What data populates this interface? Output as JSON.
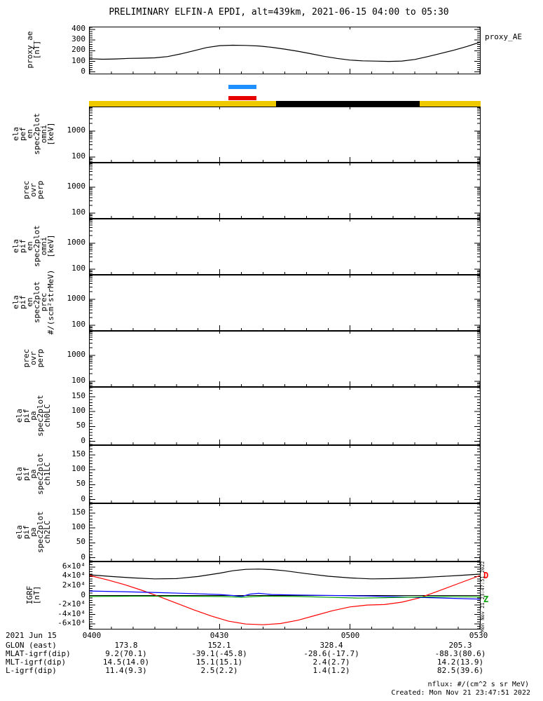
{
  "title": "PRELIMINARY ELFIN-A EPDI, alt=439km, 2021-06-15 04:00 to 05:30",
  "xaxis": {
    "range_minutes": [
      0,
      90
    ],
    "major_minutes": [
      0,
      30,
      60,
      90
    ],
    "minor_step_minutes": 5,
    "tick_labels": [
      "0400",
      "0430",
      "0500",
      "0530"
    ]
  },
  "legend_bars": {
    "items": [
      {
        "name": "legend-bar-blue",
        "color": "#1e90ff"
      },
      {
        "name": "legend-bar-red",
        "color": "#e60000"
      }
    ]
  },
  "availability_bar": {
    "color": "#eec900",
    "segments": [
      {
        "color": "#000000",
        "start_minute": 43,
        "end_minute": 76
      }
    ]
  },
  "chart_data": [
    {
      "type": "line",
      "id": "proxy_ae",
      "right_label": "proxy_AE",
      "ylabel_lines": [
        "proxy_ae",
        "[nT]"
      ],
      "scale": "linear",
      "ylim": [
        -15,
        420
      ],
      "minor_step": 20,
      "yticks": [
        0,
        100,
        200,
        300,
        400
      ],
      "ytick_labels": [
        "0",
        "100",
        "200",
        "300",
        "400"
      ],
      "series": [
        {
          "name": "proxy_AE",
          "color": "#000000",
          "x": [
            0,
            3,
            6,
            9,
            12,
            15,
            18,
            21,
            24,
            27,
            30,
            33,
            36,
            39,
            42,
            45,
            48,
            51,
            54,
            57,
            60,
            63,
            66,
            69,
            72,
            75,
            78,
            81,
            84,
            87,
            90
          ],
          "y": [
            125,
            120,
            123,
            128,
            130,
            133,
            145,
            170,
            200,
            230,
            248,
            252,
            250,
            245,
            232,
            215,
            195,
            172,
            148,
            128,
            112,
            105,
            102,
            100,
            103,
            118,
            145,
            175,
            205,
            240,
            280
          ]
        }
      ]
    },
    {
      "type": "spectrogram",
      "id": "ela_pef_en_spec2plot_omni",
      "ylabel_lines": [
        "ela",
        "pef",
        "en",
        "spec2plot",
        "omni",
        "[keV]"
      ],
      "scale": "log",
      "ylim": [
        65,
        8300
      ],
      "yticks": [
        100,
        1000
      ],
      "ytick_labels": [
        "100",
        "1000"
      ],
      "series": []
    },
    {
      "type": "spectrogram",
      "id": "prec_ovr_perp_a",
      "ylabel_lines": [
        "prec",
        "ovr",
        "perp"
      ],
      "scale": "log",
      "ylim": [
        65,
        8300
      ],
      "yticks": [
        100,
        1000
      ],
      "ytick_labels": [
        "100",
        "1000"
      ],
      "series": []
    },
    {
      "type": "spectrogram",
      "id": "ela_pif_en_spec2plot_omni",
      "ylabel_lines": [
        "ela",
        "pif",
        "en",
        "spec2plot",
        "omni",
        "[keV]"
      ],
      "scale": "log",
      "ylim": [
        65,
        8300
      ],
      "yticks": [
        100,
        1000
      ],
      "ytick_labels": [
        "100",
        "1000"
      ],
      "series": []
    },
    {
      "type": "spectrogram",
      "id": "ela_pif_en_spec2plot_prec",
      "ylabel_lines": [
        "ela",
        "pif",
        "en",
        "spec2plot",
        "prec",
        "#/(scm²strMeV)"
      ],
      "scale": "log",
      "ylim": [
        65,
        8300
      ],
      "yticks": [
        100,
        1000
      ],
      "ytick_labels": [
        "100",
        "1000"
      ],
      "series": []
    },
    {
      "type": "spectrogram",
      "id": "prec_ovr_perp_b",
      "ylabel_lines": [
        "prec",
        "ovr",
        "perp"
      ],
      "scale": "log",
      "ylim": [
        65,
        8300
      ],
      "yticks": [
        100,
        1000
      ],
      "ytick_labels": [
        "100",
        "1000"
      ],
      "series": []
    },
    {
      "type": "line",
      "id": "ela_pif_pa_spec2plot_ch0LC",
      "ylabel_lines": [
        "ela",
        "pif",
        "pa",
        "spec2plot",
        "ch0LC"
      ],
      "scale": "linear",
      "ylim": [
        -10,
        180
      ],
      "minor_step": 10,
      "yticks": [
        0,
        50,
        100,
        150
      ],
      "ytick_labels": [
        "0",
        "50",
        "100",
        "150"
      ],
      "series": []
    },
    {
      "type": "line",
      "id": "ela_pif_pa_spec2plot_ch1LC",
      "ylabel_lines": [
        "ela",
        "pif",
        "pa",
        "spec2plot",
        "ch1LC"
      ],
      "scale": "linear",
      "ylim": [
        -10,
        180
      ],
      "minor_step": 10,
      "yticks": [
        0,
        50,
        100,
        150
      ],
      "ytick_labels": [
        "0",
        "50",
        "100",
        "150"
      ],
      "series": []
    },
    {
      "type": "line",
      "id": "ela_pif_pa_spec2plot_ch2LC",
      "ylabel_lines": [
        "ela",
        "pif",
        "pa",
        "spec2plot",
        "ch2LC"
      ],
      "scale": "linear",
      "ylim": [
        -10,
        180
      ],
      "minor_step": 10,
      "yticks": [
        0,
        50,
        100,
        150
      ],
      "ytick_labels": [
        "0",
        "50",
        "100",
        "150"
      ],
      "series": []
    },
    {
      "type": "line",
      "id": "igrf",
      "ylabel_lines": [
        "IGRF",
        "[nT]"
      ],
      "scale": "linear",
      "ylim": [
        -70000,
        70000
      ],
      "minor_step": 5000,
      "zero_line": true,
      "yticks": [
        -60000,
        -40000,
        -20000,
        0,
        20000,
        40000,
        60000
      ],
      "ytick_labels": [
        "-6×10⁴",
        "-4×10⁴",
        "-2×10⁴",
        "0",
        "2×10⁴",
        "4×10⁴",
        "6×10⁴"
      ],
      "line_labels": [
        {
          "text": "D",
          "color": "#ff0000",
          "value": 40000
        },
        {
          "text": "Z",
          "color": "#00a000",
          "value": -10000
        }
      ],
      "series": [
        {
          "name": "igrf-black",
          "color": "#000000",
          "x": [
            0,
            5,
            10,
            15,
            20,
            25,
            30,
            33,
            36,
            39,
            42,
            45,
            50,
            55,
            60,
            65,
            70,
            75,
            80,
            85,
            90
          ],
          "y": [
            43500,
            40000,
            37000,
            35000,
            35500,
            40000,
            47000,
            52000,
            55000,
            55500,
            54500,
            52000,
            46000,
            40500,
            37000,
            35000,
            35500,
            37000,
            39500,
            42000,
            45000
          ]
        },
        {
          "name": "igrf-red",
          "color": "#ff0000",
          "x": [
            0,
            4,
            8,
            12,
            16,
            20,
            24,
            28,
            32,
            36,
            40,
            44,
            48,
            52,
            56,
            60,
            64,
            68,
            72,
            76,
            80,
            85,
            90
          ],
          "y": [
            42000,
            33000,
            23000,
            11000,
            -2000,
            -16000,
            -30000,
            -43000,
            -54000,
            -60000,
            -61500,
            -59000,
            -52000,
            -42000,
            -32000,
            -24000,
            -20000,
            -19000,
            -14000,
            -5000,
            8000,
            25000,
            42000
          ]
        },
        {
          "name": "igrf-blue",
          "color": "#0000ff",
          "x": [
            0,
            8,
            16,
            24,
            30,
            33,
            35,
            37,
            39,
            42,
            48,
            56,
            64,
            72,
            80,
            90
          ],
          "y": [
            9500,
            8000,
            6000,
            4000,
            2000,
            0,
            -2000,
            3000,
            4500,
            2000,
            1000,
            0,
            -1000,
            -3000,
            -5000,
            -7500
          ]
        },
        {
          "name": "igrf-green",
          "color": "#00a000",
          "x": [
            0,
            10,
            20,
            30,
            35,
            40,
            48,
            56,
            62,
            68,
            76,
            84,
            90
          ],
          "y": [
            -2000,
            -1500,
            -1500,
            -2000,
            -3500,
            -1500,
            -2000,
            -4000,
            -5500,
            -4500,
            -3000,
            -2500,
            -3000
          ]
        }
      ]
    }
  ],
  "footer": {
    "date_label": "2021 Jun 15",
    "rows": [
      {
        "label": "GLON (east)",
        "values": [
          "173.8",
          "152.1",
          "328.4",
          "205.3"
        ]
      },
      {
        "label": "MLAT-igrf(dip)",
        "values": [
          "9.2(70.1)",
          "-39.1(-45.8)",
          "-28.6(-17.7)",
          "-88.3(80.6)"
        ]
      },
      {
        "label": "MLT-igrf(dip)",
        "values": [
          "14.5(14.0)",
          "15.1(15.1)",
          "2.4(2.7)",
          "14.2(13.9)"
        ]
      },
      {
        "label": "L-igrf(dip)",
        "values": [
          "11.4(9.3)",
          "2.5(2.2)",
          "1.4(1.2)",
          "82.5(39.6)"
        ]
      }
    ]
  },
  "annotations": {
    "side_timestamp": "Mon Nov 21 23:47:51 2022",
    "nflux_note": "nflux: #/(cm^2 s sr MeV)",
    "created": "Created: Mon Nov 21 23:47:51 2022"
  }
}
